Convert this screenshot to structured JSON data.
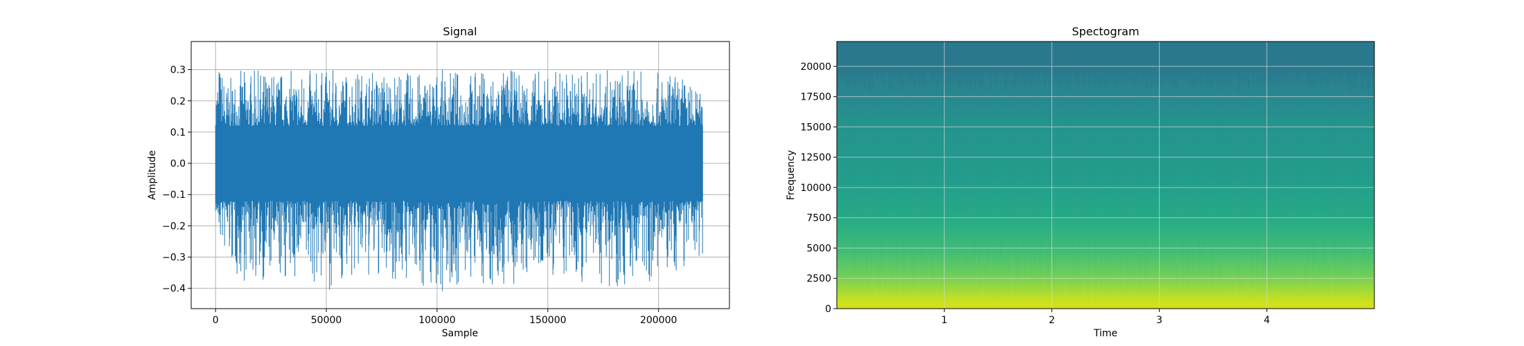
{
  "chart_data": [
    {
      "type": "line",
      "title": "Signal",
      "xlabel": "Sample",
      "ylabel": "Amplitude",
      "xlim": [
        -11000,
        232000
      ],
      "ylim": [
        -0.465,
        0.39
      ],
      "xticks": [
        0,
        50000,
        100000,
        150000,
        200000
      ],
      "xtick_labels": [
        "0",
        "50000",
        "100000",
        "150000",
        "200000"
      ],
      "yticks": [
        -0.4,
        -0.3,
        -0.2,
        -0.1,
        0.0,
        0.1,
        0.2,
        0.3
      ],
      "ytick_labels": [
        "−0.4",
        "−0.3",
        "−0.2",
        "−0.1",
        "0.0",
        "0.1",
        "0.2",
        "0.3"
      ],
      "grid": true,
      "color": "#1f77b4",
      "series": [
        {
          "x": [
            0,
            1500,
            5000,
            10000,
            20000,
            30000,
            40000,
            50000,
            60000,
            70000,
            80000,
            90000,
            100000,
            110000,
            120000,
            130000,
            140000,
            150000,
            160000,
            170000,
            180000,
            190000,
            200000,
            210000,
            220000
          ],
          "upper": [
            0.28,
            0.34,
            0.26,
            0.3,
            0.3,
            0.3,
            0.3,
            0.3,
            0.3,
            0.3,
            0.3,
            0.29,
            0.3,
            0.3,
            0.3,
            0.3,
            0.3,
            0.3,
            0.3,
            0.3,
            0.3,
            0.3,
            0.29,
            0.29,
            0.22
          ],
          "lower": [
            -0.16,
            -0.25,
            -0.32,
            -0.38,
            -0.38,
            -0.39,
            -0.38,
            -0.41,
            -0.38,
            -0.38,
            -0.38,
            -0.39,
            -0.42,
            -0.4,
            -0.39,
            -0.42,
            -0.38,
            -0.37,
            -0.39,
            -0.38,
            -0.4,
            -0.39,
            -0.38,
            -0.35,
            -0.29
          ]
        }
      ]
    },
    {
      "type": "heatmap",
      "title": "Spectogram",
      "xlabel": "Time",
      "ylabel": "Frequency",
      "xlim": [
        0,
        5
      ],
      "ylim": [
        0,
        22050
      ],
      "xticks": [
        1,
        2,
        3,
        4
      ],
      "xtick_labels": [
        "1",
        "2",
        "3",
        "4"
      ],
      "yticks": [
        0,
        2500,
        5000,
        7500,
        10000,
        12500,
        15000,
        17500,
        20000
      ],
      "ytick_labels": [
        "0",
        "2500",
        "5000",
        "7500",
        "10000",
        "12500",
        "15000",
        "17500",
        "20000"
      ],
      "grid": true,
      "colormap": "viridis",
      "frequency_bands": [
        {
          "from": 0,
          "to": 1000,
          "color": "#d0e11c"
        },
        {
          "from": 1000,
          "to": 2000,
          "color": "#a2da37"
        },
        {
          "from": 2000,
          "to": 3500,
          "color": "#6ece58"
        },
        {
          "from": 3500,
          "to": 6000,
          "color": "#3dbc74"
        },
        {
          "from": 6000,
          "to": 9000,
          "color": "#22a884"
        },
        {
          "from": 9000,
          "to": 13000,
          "color": "#1f9a8a"
        },
        {
          "from": 13000,
          "to": 18000,
          "color": "#21918c"
        },
        {
          "from": 18000,
          "to": 22050,
          "color": "#2a788e"
        }
      ]
    }
  ]
}
